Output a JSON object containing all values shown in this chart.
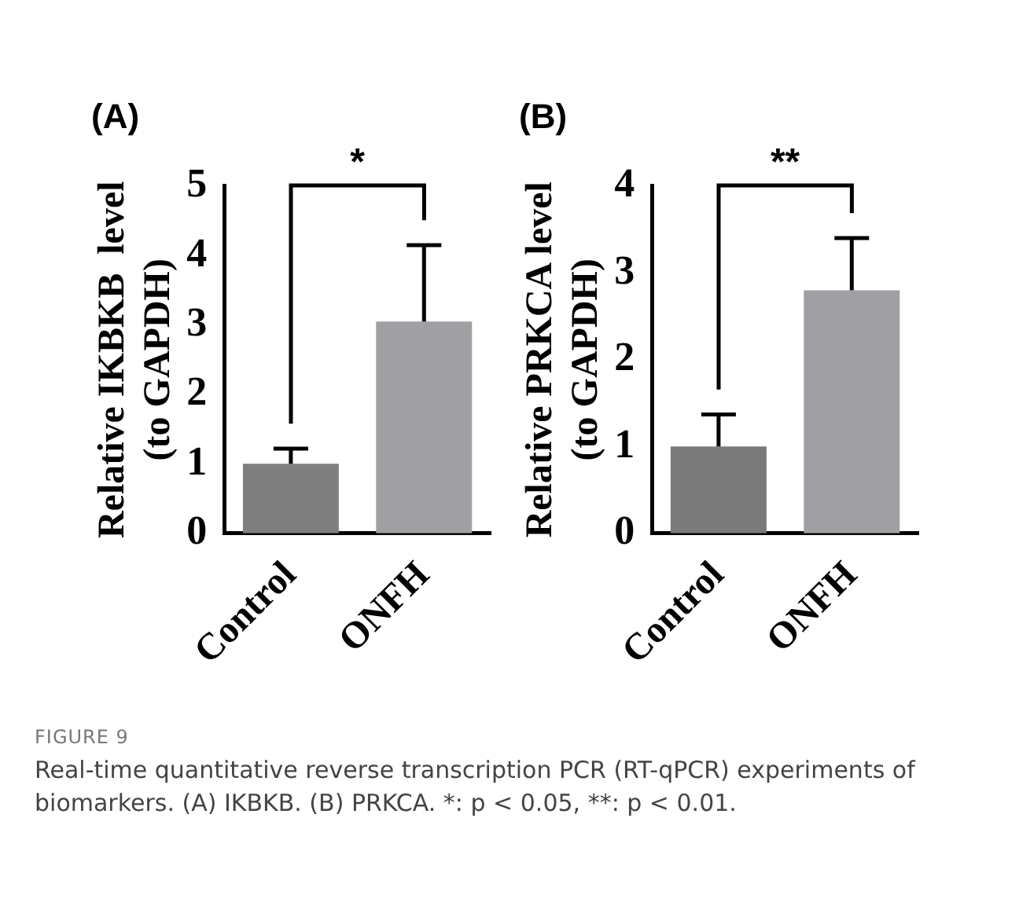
{
  "chart_data": [
    {
      "type": "bar",
      "title": "(A)",
      "ylabel": "Relative IKBKB  level\n(to GAPDH)",
      "categories": [
        "Control",
        "ONFH"
      ],
      "values": [
        1.0,
        3.05
      ],
      "colors": [
        "#7f7f7f",
        "#a0a0a4"
      ],
      "errors": [
        [
          1.0,
          1.22
        ],
        [
          3.05,
          4.15
        ]
      ],
      "ylim": [
        0,
        5
      ],
      "yticks": [
        0,
        1,
        2,
        3,
        4,
        5
      ],
      "annotations": [
        "*",
        "FIGURE 9"
      ]
    },
    {
      "type": "bar",
      "title": "(B)",
      "ylabel": "Relative PRKCA level\n(to GAPDH)",
      "categories": [
        "Control",
        "ONFH"
      ],
      "values": [
        1.0,
        2.8
      ],
      "colors": [
        "#7a7a7a",
        "#a0a0a4"
      ],
      "errors": [
        [
          1.0,
          1.37
        ],
        [
          2.8,
          3.4
        ]
      ],
      "ylim": [
        0,
        4
      ],
      "yticks": [
        0,
        1,
        2,
        3,
        4
      ],
      "annotations": [
        "**",
        "Real-time quantitative reverse transcription PCR (RT-qPCR) experiments of biomarkers. (A) IKBKB. (B) PRKCA. *: p < 0.05, **: p < 0.01."
      ]
    }
  ]
}
